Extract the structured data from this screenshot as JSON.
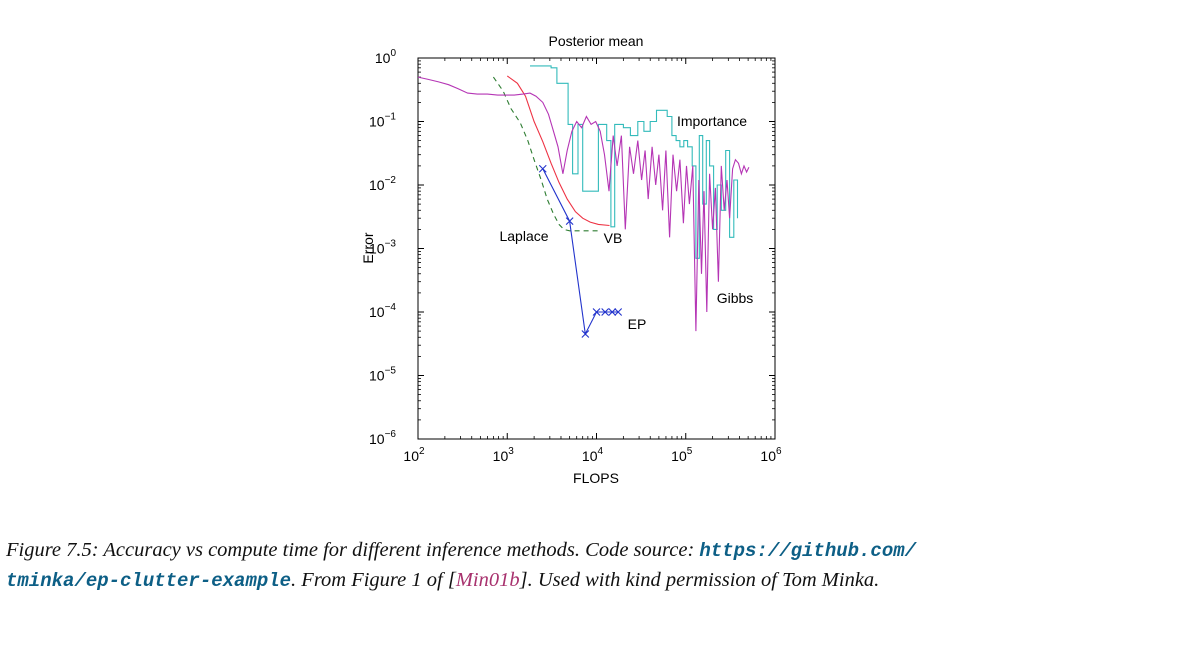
{
  "chart_data": {
    "type": "line",
    "title": "Posterior mean",
    "xlabel": "FLOPS",
    "ylabel": "Error",
    "xscale": "log",
    "yscale": "log",
    "xlim": [
      100,
      1000000
    ],
    "ylim": [
      1e-06,
      1
    ],
    "x_ticks": [
      {
        "value": 100,
        "base": "10",
        "exp": "2"
      },
      {
        "value": 1000,
        "base": "10",
        "exp": "3"
      },
      {
        "value": 10000,
        "base": "10",
        "exp": "4"
      },
      {
        "value": 100000,
        "base": "10",
        "exp": "5"
      },
      {
        "value": 1000000,
        "base": "10",
        "exp": "6"
      }
    ],
    "y_ticks": [
      {
        "value": 1,
        "base": "10",
        "exp": "0"
      },
      {
        "value": 0.1,
        "base": "10",
        "exp": "−1"
      },
      {
        "value": 0.01,
        "base": "10",
        "exp": "−2"
      },
      {
        "value": 0.001,
        "base": "10",
        "exp": "−3"
      },
      {
        "value": 0.0001,
        "base": "10",
        "exp": "−4"
      },
      {
        "value": 1e-05,
        "base": "10",
        "exp": "−5"
      },
      {
        "value": 1e-06,
        "base": "10",
        "exp": "−6"
      }
    ],
    "grid": false,
    "series": [
      {
        "name": "Laplace",
        "color": "#2e7d32",
        "dash": true,
        "marker": "none",
        "x": [
          700,
          900,
          1100,
          1400,
          1700,
          2000,
          2400,
          2800,
          3300,
          3800,
          4300,
          5000,
          6500,
          8500,
          11000
        ],
        "y": [
          0.5,
          0.3,
          0.16,
          0.095,
          0.05,
          0.025,
          0.012,
          0.006,
          0.0035,
          0.0024,
          0.002,
          0.0019,
          0.0019,
          0.0019,
          0.0019
        ]
      },
      {
        "name": "VB",
        "color": "#ee3344",
        "dash": false,
        "marker": "none",
        "x": [
          1000,
          1300,
          1600,
          2000,
          2500,
          3100,
          3800,
          4700,
          5800,
          7000,
          8500,
          10500,
          14000
        ],
        "y": [
          0.52,
          0.4,
          0.25,
          0.1,
          0.048,
          0.022,
          0.011,
          0.006,
          0.0038,
          0.003,
          0.0026,
          0.0024,
          0.0023
        ]
      },
      {
        "name": "EP",
        "color": "#2233cc",
        "dash": false,
        "marker": "x",
        "x": [
          2500,
          5000,
          7500,
          10000,
          12500,
          15000,
          17500
        ],
        "y": [
          0.018,
          0.0027,
          4.5e-05,
          0.0001,
          0.0001,
          0.0001,
          0.0001
        ]
      },
      {
        "name": "Importance",
        "color": "#33bbbb",
        "dash": false,
        "marker": "none",
        "step": true,
        "x": [
          1800,
          2900,
          3100,
          3600,
          4300,
          4800,
          5400,
          6200,
          7000,
          9500,
          10500,
          13000,
          14500,
          16000,
          20000,
          24000,
          29000,
          34000,
          40000,
          47000,
          55000,
          62000,
          70000,
          78000,
          86000,
          95000,
          105000,
          118000,
          130000,
          142000,
          155000,
          170000,
          185000,
          205000,
          225000,
          250000,
          280000,
          310000,
          345000,
          380000
        ],
        "y": [
          0.75,
          0.75,
          0.7,
          0.4,
          0.4,
          0.09,
          0.015,
          0.09,
          0.008,
          0.008,
          0.09,
          0.05,
          0.0022,
          0.09,
          0.08,
          0.06,
          0.1,
          0.07,
          0.1,
          0.15,
          0.15,
          0.12,
          0.06,
          0.05,
          0.04,
          0.05,
          0.04,
          0.02,
          0.0007,
          0.06,
          0.005,
          0.05,
          0.02,
          0.002,
          0.01,
          0.004,
          0.035,
          0.0015,
          0.012,
          0.003
        ]
      },
      {
        "name": "Gibbs",
        "color": "#b535b5",
        "dash": false,
        "marker": "none",
        "x": [
          100,
          130,
          170,
          220,
          280,
          360,
          460,
          600,
          780,
          1000,
          1200,
          1500,
          1800,
          2100,
          2500,
          2900,
          3300,
          3700,
          4200,
          4700,
          5300,
          6000,
          6800,
          7700,
          8700,
          9800,
          11000,
          12300,
          13800,
          15400,
          17000,
          19000,
          21000,
          23500,
          26000,
          29000,
          32000,
          35000,
          38000,
          42000,
          46000,
          50000,
          55000,
          60000,
          66000,
          72000,
          79000,
          86000,
          94000,
          102000,
          110000,
          120000,
          130000,
          140000,
          150000,
          160000,
          172000,
          185000,
          200000,
          215000,
          232000,
          250000,
          270000,
          290000,
          310000,
          335000,
          360000,
          390000,
          420000,
          450000,
          480000,
          510000
        ],
        "y": [
          0.5,
          0.46,
          0.42,
          0.38,
          0.33,
          0.28,
          0.27,
          0.27,
          0.26,
          0.26,
          0.26,
          0.27,
          0.28,
          0.25,
          0.2,
          0.13,
          0.07,
          0.04,
          0.015,
          0.035,
          0.07,
          0.1,
          0.08,
          0.12,
          0.09,
          0.1,
          0.07,
          0.03,
          0.008,
          0.06,
          0.02,
          0.06,
          0.002,
          0.04,
          0.015,
          0.05,
          0.012,
          0.035,
          0.006,
          0.04,
          0.01,
          0.03,
          0.004,
          0.035,
          0.0015,
          0.03,
          0.008,
          0.025,
          0.0025,
          0.02,
          0.005,
          0.02,
          5e-05,
          0.012,
          0.0004,
          0.008,
          0.0001,
          0.015,
          0.002,
          0.009,
          0.0003,
          0.02,
          0.004,
          0.012,
          0.003,
          0.018,
          0.025,
          0.022,
          0.015,
          0.02,
          0.016,
          0.019
        ]
      }
    ],
    "annotations": [
      {
        "text": "Importance",
        "series": "Importance"
      },
      {
        "text": "Laplace",
        "series": "Laplace"
      },
      {
        "text": "VB",
        "series": "VB"
      },
      {
        "text": "Gibbs",
        "series": "Gibbs"
      },
      {
        "text": "EP",
        "series": "EP"
      }
    ]
  },
  "caption": {
    "prefix": "Figure 7.5: Accuracy vs compute time for different inference methods. Code source: ",
    "link1": "https://github.com/",
    "link2": "tminka/ep-clutter-example",
    "middle": ". From Figure 1 of [",
    "cite": "Min01b",
    "suffix": "]. Used with kind permission of Tom Minka."
  }
}
